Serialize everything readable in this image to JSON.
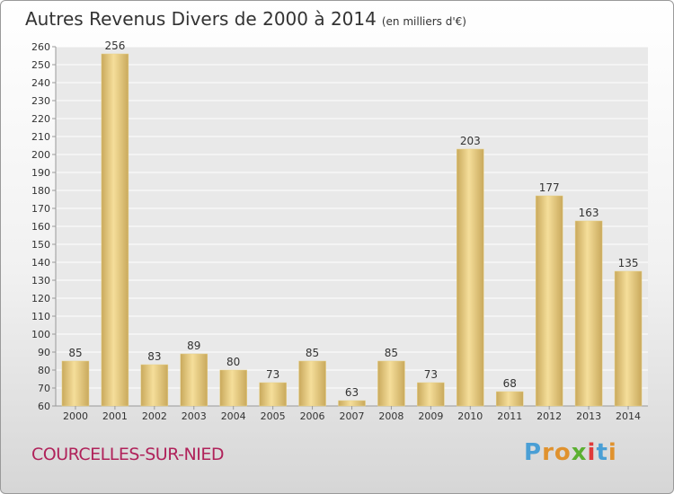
{
  "title": "Autres Revenus Divers de 2000 à 2014",
  "unit": "(en milliers d'€)",
  "commune": "COURCELLES-SUR-NIED",
  "logo": {
    "letters": [
      "P",
      "r",
      "o",
      "x",
      "i",
      "t",
      "i"
    ],
    "colors": [
      "#4a9fd5",
      "#e0922e",
      "#e0922e",
      "#5bb031",
      "#e03a3a",
      "#4a9fd5",
      "#e0922e"
    ]
  },
  "colors": {
    "bar_light": "#f5de9a",
    "bar_dark": "#c9a95c",
    "grid": "#ffffff",
    "plot_bg": "#e9e9e9",
    "text": "#333333"
  },
  "chart_data": {
    "type": "bar",
    "categories": [
      "2000",
      "2001",
      "2002",
      "2003",
      "2004",
      "2005",
      "2006",
      "2007",
      "2008",
      "2009",
      "2010",
      "2011",
      "2012",
      "2013",
      "2014"
    ],
    "values": [
      85,
      256,
      83,
      89,
      80,
      73,
      85,
      63,
      85,
      73,
      203,
      68,
      177,
      163,
      135
    ],
    "ylim": [
      60,
      260
    ],
    "yticks": [
      60,
      70,
      80,
      90,
      100,
      110,
      120,
      130,
      140,
      150,
      160,
      170,
      180,
      190,
      200,
      210,
      220,
      230,
      240,
      250,
      260
    ],
    "grid": true
  }
}
